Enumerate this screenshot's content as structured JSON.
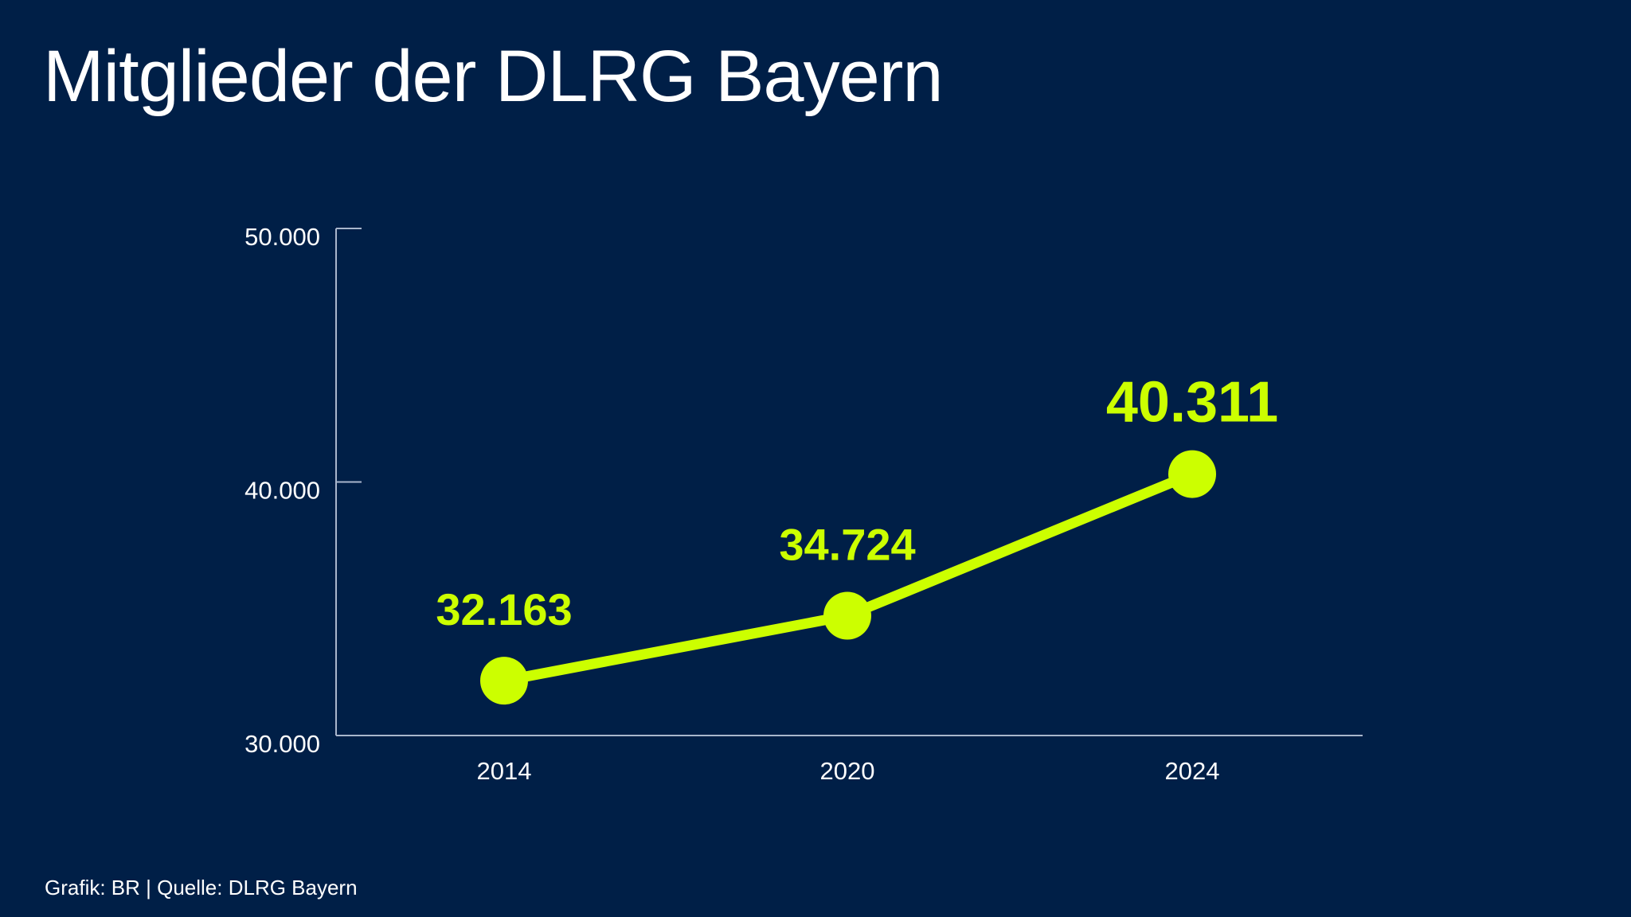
{
  "chart_data": {
    "type": "line",
    "title": "Mitglieder der DLRG Bayern",
    "categories": [
      "2014",
      "2020",
      "2024"
    ],
    "values": [
      32163,
      34724,
      40311
    ],
    "data_labels": [
      "32.163",
      "34.724",
      "40.311"
    ],
    "ylim": [
      30000,
      50000
    ],
    "yticks": [
      30000,
      40000,
      50000
    ],
    "ytick_labels": [
      "30.000",
      "40.000",
      "50.000"
    ],
    "xlabel": "",
    "ylabel": "",
    "grid": false,
    "markers": true,
    "colors": {
      "background": "#001f47",
      "line": "#ccff00",
      "axis": "#a9b6cc",
      "text": "#ffffff"
    }
  },
  "footer": {
    "source": "Grafik: BR | Quelle: DLRG Bayern"
  }
}
